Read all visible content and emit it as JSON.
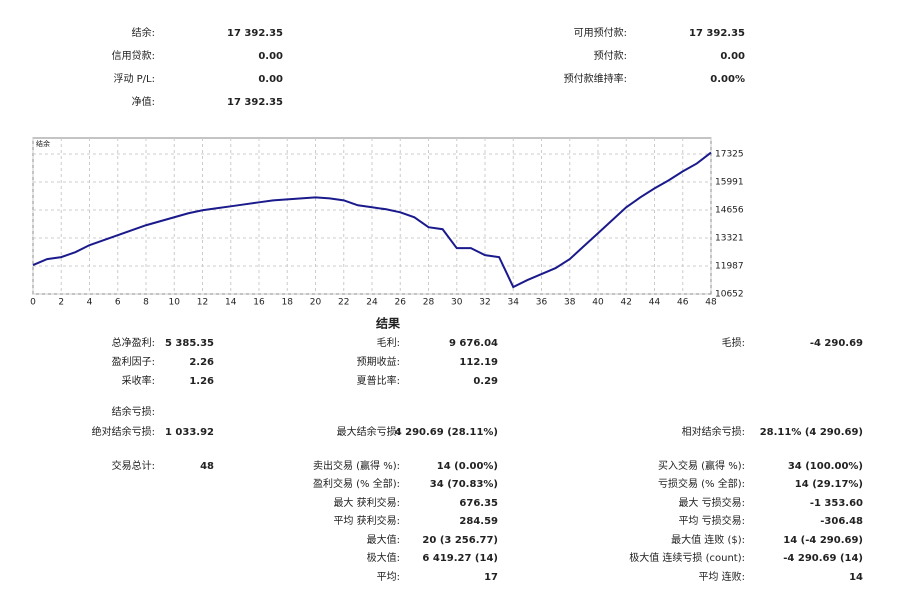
{
  "summary": {
    "left": [
      {
        "label": "结余:",
        "value": "17 392.35"
      },
      {
        "label": "信用贷款:",
        "value": "0.00"
      },
      {
        "label": "浮动 P/L:",
        "value": "0.00"
      },
      {
        "label": "净值:",
        "value": "17 392.35"
      }
    ],
    "right": [
      {
        "label": "可用预付款:",
        "value": "17 392.35"
      },
      {
        "label": "预付款:",
        "value": "0.00"
      },
      {
        "label": "预付款维持率:",
        "value": "0.00%"
      }
    ]
  },
  "chart_data": {
    "type": "line",
    "title": "结余",
    "color": "#1a1a8c",
    "grid": true,
    "x": [
      0,
      1,
      2,
      3,
      4,
      5,
      6,
      7,
      8,
      9,
      10,
      11,
      12,
      13,
      14,
      15,
      16,
      17,
      18,
      19,
      20,
      21,
      22,
      23,
      24,
      25,
      26,
      27,
      28,
      29,
      30,
      31,
      32,
      33,
      34,
      35,
      36,
      37,
      38,
      39,
      40,
      41,
      42,
      43,
      44,
      45,
      46,
      47,
      48
    ],
    "values": [
      12030,
      12315,
      12410,
      12647,
      12980,
      13217,
      13455,
      13692,
      13930,
      14120,
      14310,
      14500,
      14642,
      14737,
      14832,
      14927,
      15022,
      15117,
      15165,
      15212,
      15260,
      15212,
      15117,
      14880,
      14785,
      14690,
      14547,
      14310,
      13835,
      13740,
      12837,
      12837,
      12505,
      12410,
      10985,
      11317,
      11602,
      11887,
      12315,
      12932,
      13550,
      14167,
      14785,
      15260,
      15687,
      16067,
      16495,
      16875,
      17392
    ],
    "xlim": [
      0,
      48
    ],
    "xticks": [
      0,
      2,
      4,
      6,
      8,
      10,
      12,
      14,
      16,
      18,
      20,
      22,
      24,
      26,
      28,
      30,
      32,
      34,
      36,
      38,
      40,
      42,
      44,
      46,
      48
    ],
    "ylim": [
      10652,
      18088
    ],
    "yticks": [
      10652,
      11987,
      13321,
      14656,
      15991,
      17325
    ]
  },
  "results": {
    "title": "结果",
    "rows": [
      {
        "left": {
          "label": "总净盈利:",
          "value": "5 385.35"
        },
        "middle": {
          "label": "毛利:",
          "value": "9 676.04"
        },
        "right": {
          "label": "毛损:",
          "value": "-4 290.69"
        }
      },
      {
        "left": {
          "label": "盈利因子:",
          "value": "2.26"
        },
        "middle": {
          "label": "预期收益:",
          "value": "112.19"
        }
      },
      {
        "left": {
          "label": "采收率:",
          "value": "1.26"
        },
        "middle": {
          "label": "夏普比率:",
          "value": "0.29"
        }
      },
      {
        "left": {
          "label": "结余亏损:"
        }
      },
      {
        "left": {
          "label": "绝对结余亏损:",
          "value": "1 033.92"
        },
        "middle": {
          "label": "最大结余亏损:",
          "value": "4 290.69 (28.11%)"
        },
        "right": {
          "label": "相对结余亏损:",
          "value": "28.11% (4 290.69)"
        }
      },
      {
        "left": {
          "label": "交易总计:",
          "value": "48"
        },
        "middle": {
          "label": "卖出交易 (赢得 %):",
          "value": "14 (0.00%)"
        },
        "right": {
          "label": "买入交易 (赢得 %):",
          "value": "34 (100.00%)"
        }
      },
      {
        "middle": {
          "label": "盈利交易 (% 全部):",
          "value": "34 (70.83%)"
        },
        "right": {
          "label": "亏损交易 (% 全部):",
          "value": "14 (29.17%)"
        }
      },
      {
        "middle": {
          "label": "最大 获利交易:",
          "value": "676.35"
        },
        "right": {
          "label": "最大 亏损交易:",
          "value": "-1 353.60"
        }
      },
      {
        "middle": {
          "label": "平均 获利交易:",
          "value": "284.59"
        },
        "right": {
          "label": "平均 亏损交易:",
          "value": "-306.48"
        }
      },
      {
        "middle": {
          "label": "最大值:",
          "value": "20 (3 256.77)"
        },
        "right": {
          "label": "最大值 连败 ($):",
          "value": "14 (-4 290.69)"
        }
      },
      {
        "middle": {
          "label": "极大值:",
          "value": "6 419.27 (14)"
        },
        "right": {
          "label": "极大值 连续亏损 (count):",
          "value": "-4 290.69 (14)"
        }
      },
      {
        "middle": {
          "label": "平均:",
          "value": "17"
        },
        "right": {
          "label": "平均 连败:",
          "value": "14"
        }
      }
    ]
  }
}
